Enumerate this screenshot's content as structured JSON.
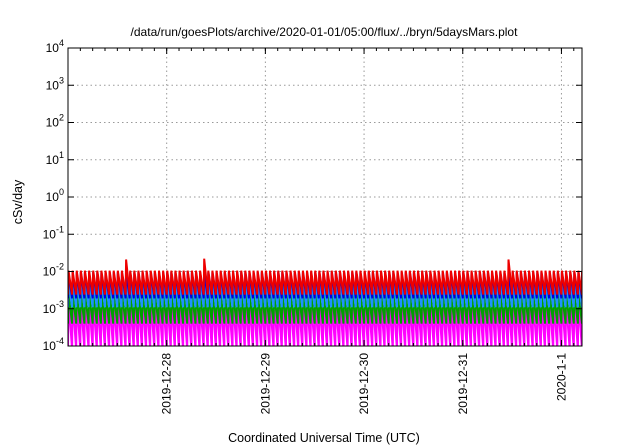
{
  "chart_data": {
    "type": "line",
    "title": "/data/run/goesPlots/archive/2020-01-01/05:00/flux/../bryn/5daysMars.plot",
    "xlabel": "Coordinated Universal Time (UTC)",
    "ylabel": "cSv/day",
    "yscale": "log",
    "ylim": [
      0.0001,
      10000
    ],
    "yticks": [
      {
        "base": "10",
        "exp": "-4"
      },
      {
        "base": "10",
        "exp": "-3"
      },
      {
        "base": "10",
        "exp": "-2"
      },
      {
        "base": "10",
        "exp": "-1"
      },
      {
        "base": "10",
        "exp": "0"
      },
      {
        "base": "10",
        "exp": "1"
      },
      {
        "base": "10",
        "exp": "2"
      },
      {
        "base": "10",
        "exp": "3"
      },
      {
        "base": "10",
        "exp": "4"
      }
    ],
    "xlim": [
      "2019-12-27 00:00",
      "2020-01-01 05:00"
    ],
    "xticks": [
      "2019-12-28",
      "2019-12-29",
      "2019-12-30",
      "2019-12-31",
      "2020-1-1"
    ],
    "grid": true,
    "series_style": "sawtooth",
    "series": [
      {
        "color": "#ee0000",
        "peaks": 0.0105,
        "troughs": 0.0024,
        "special_peaks": [
          {
            "x": "2019-12-27 14:00",
            "value": 0.021
          },
          {
            "x": "2019-12-28 09:00",
            "value": 0.022
          },
          {
            "x": "2019-12-31 11:00",
            "value": 0.021
          }
        ]
      },
      {
        "color": "#0000dd",
        "peaks": 0.0095,
        "troughs": 0.0019
      },
      {
        "color": "#1e90ff",
        "peaks": 0.0055,
        "troughs": 0.0011,
        "special_peaks": [
          {
            "x": "2019-12-27 10:00",
            "value": 0.0065
          }
        ]
      },
      {
        "color": "#00a000",
        "peaks": 0.0026,
        "troughs": 0.0004
      },
      {
        "color": "#ff00ff",
        "peaks": 0.0017,
        "troughs": 8e-05
      }
    ]
  }
}
